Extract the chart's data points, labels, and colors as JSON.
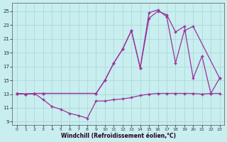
{
  "background_color": "#c8eef0",
  "grid_color": "#b0d8d8",
  "line_color": "#993399",
  "xlabel": "Windchill (Refroidissement éolien,°C)",
  "xlim": [
    -0.5,
    23.5
  ],
  "ylim": [
    8.5,
    26.2
  ],
  "xticks": [
    0,
    1,
    2,
    3,
    4,
    5,
    6,
    7,
    8,
    9,
    10,
    11,
    12,
    13,
    14,
    15,
    16,
    17,
    18,
    19,
    20,
    21,
    22,
    23
  ],
  "yticks": [
    9,
    11,
    13,
    15,
    17,
    19,
    21,
    23,
    25
  ],
  "line1_x": [
    0,
    1,
    2,
    3,
    4,
    5,
    6,
    7,
    8,
    9,
    10,
    11,
    12,
    13,
    14,
    15,
    16,
    17,
    18,
    19,
    20,
    21,
    22,
    23
  ],
  "line1_y": [
    13.1,
    13.0,
    13.1,
    12.2,
    11.2,
    10.8,
    10.2,
    9.9,
    9.5,
    12.0,
    12.0,
    12.2,
    12.3,
    12.5,
    12.8,
    13.0,
    13.1,
    13.1,
    13.1,
    13.1,
    13.1,
    13.0,
    13.1,
    13.1
  ],
  "line2_x": [
    0,
    1,
    2,
    3,
    9,
    10,
    11,
    12,
    13,
    14,
    15,
    16,
    17,
    18,
    19,
    20,
    23
  ],
  "line2_y": [
    13.1,
    13.0,
    13.1,
    13.1,
    13.1,
    15.0,
    17.5,
    19.5,
    22.2,
    16.8,
    24.8,
    25.2,
    24.2,
    17.5,
    22.2,
    22.8,
    15.3
  ],
  "line3_x": [
    0,
    1,
    2,
    3,
    9,
    10,
    11,
    12,
    13,
    14,
    15,
    16,
    17,
    18,
    19,
    20,
    21,
    22,
    23
  ],
  "line3_y": [
    13.1,
    13.0,
    13.1,
    13.1,
    13.1,
    15.0,
    17.5,
    19.5,
    22.2,
    16.8,
    24.0,
    25.0,
    24.5,
    22.0,
    22.8,
    15.3,
    18.5,
    13.1,
    15.3
  ]
}
